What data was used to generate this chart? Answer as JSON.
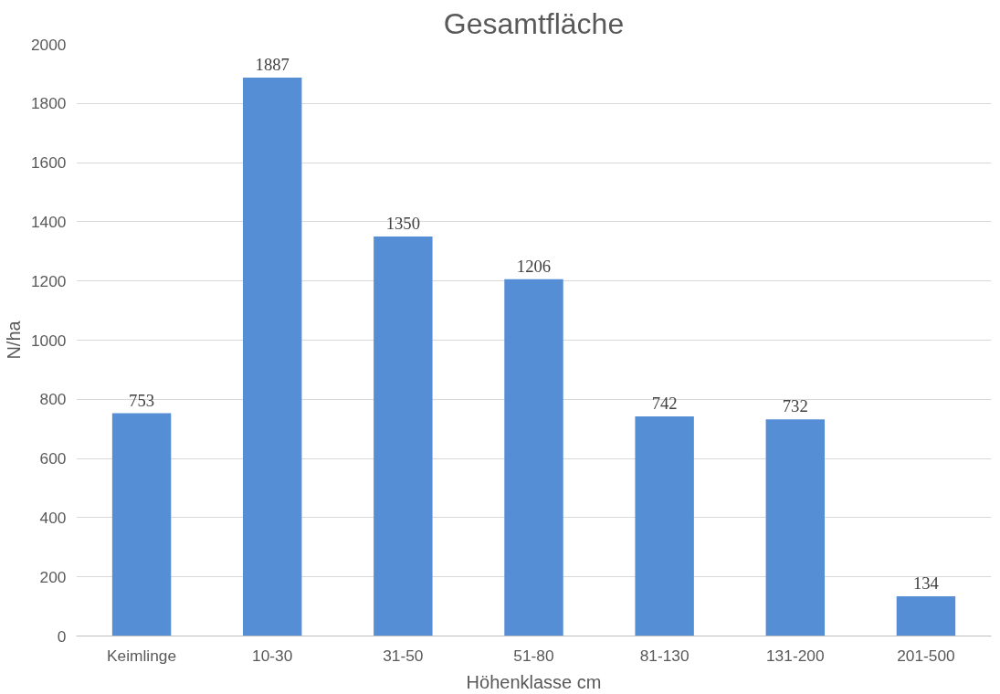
{
  "chart_data": {
    "type": "bar",
    "title": "Gesamtfläche",
    "xlabel": "Höhenklasse cm",
    "ylabel": "N/ha",
    "categories": [
      "Keimlinge",
      "10-30",
      "31-50",
      "51-80",
      "81-130",
      "131-200",
      "201-500"
    ],
    "values": [
      753,
      1887,
      1350,
      1206,
      742,
      732,
      134
    ],
    "color": "#558ed5",
    "ylim": [
      0,
      2000
    ],
    "yticks": [
      0,
      200,
      400,
      600,
      800,
      1000,
      1200,
      1400,
      1600,
      1800,
      2000
    ],
    "grid": "y",
    "data_labels": true
  }
}
